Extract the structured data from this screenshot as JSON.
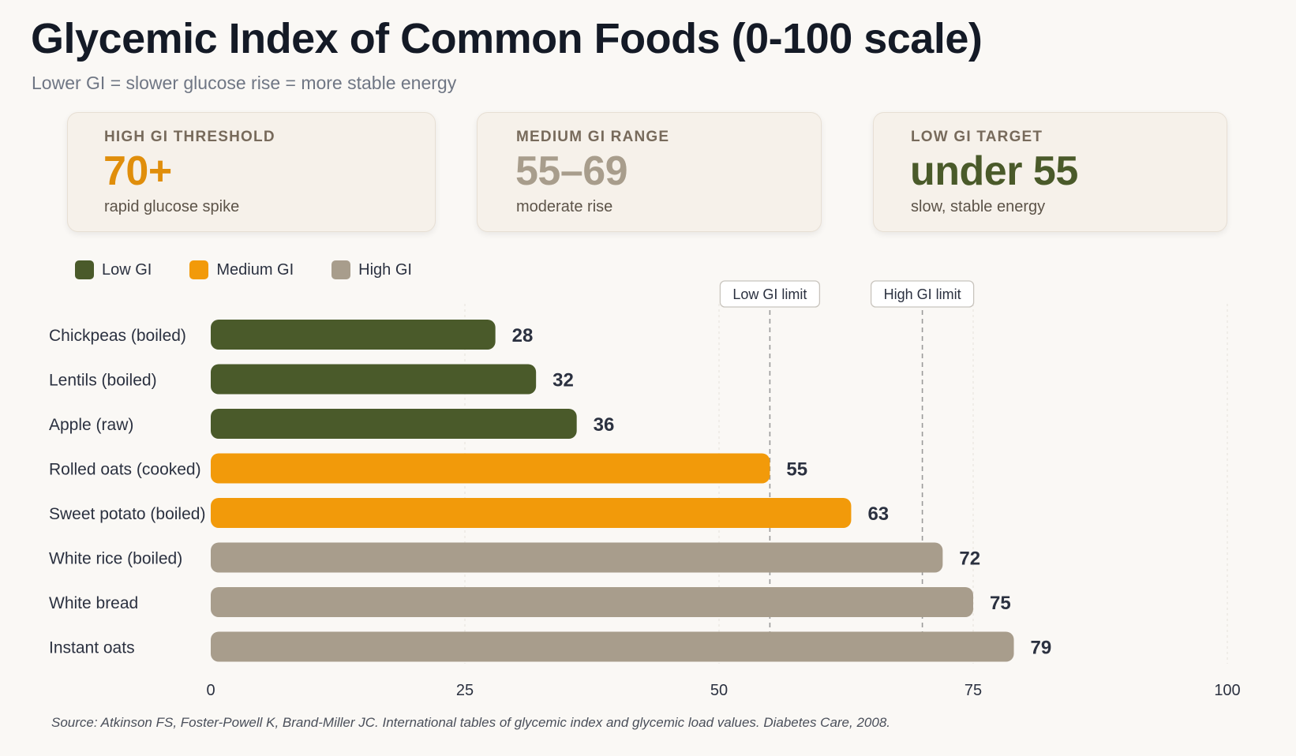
{
  "title": "Glycemic Index of Common Foods (0-100 scale)",
  "subtitle": "Lower GI = slower glucose rise = more stable energy",
  "cards": [
    {
      "label": "HIGH GI THRESHOLD",
      "value": "70+",
      "desc": "rapid glucose spike",
      "value_color": "#e08e0b"
    },
    {
      "label": "MEDIUM GI RANGE",
      "value": "55–69",
      "desc": "moderate rise",
      "value_color": "#a89d8c"
    },
    {
      "label": "LOW GI TARGET",
      "value": "under 55",
      "desc": "slow, stable energy",
      "value_color": "#4a5a2a"
    }
  ],
  "legend": [
    {
      "label": "Low GI",
      "color": "#4a5a2a"
    },
    {
      "label": "Medium GI",
      "color": "#f29a0a"
    },
    {
      "label": "High GI",
      "color": "#a89d8c"
    }
  ],
  "chart_data": {
    "type": "bar",
    "orientation": "horizontal",
    "categories": [
      "Chickpeas (boiled)",
      "Lentils (boiled)",
      "Apple (raw)",
      "Rolled oats (cooked)",
      "Sweet potato (boiled)",
      "White rice (boiled)",
      "White bread",
      "Instant oats"
    ],
    "values": [
      28,
      32,
      36,
      55,
      63,
      72,
      75,
      79
    ],
    "groups": [
      "Low GI",
      "Low GI",
      "Low GI",
      "Medium GI",
      "Medium GI",
      "High GI",
      "High GI",
      "High GI"
    ],
    "colors": {
      "Low GI": "#4a5a2a",
      "Medium GI": "#f29a0a",
      "High GI": "#a89d8c"
    },
    "xlim": [
      0,
      100
    ],
    "xticks": [
      0,
      25,
      50,
      75,
      100
    ],
    "reference_lines": [
      {
        "label": "Low GI limit",
        "x": 55
      },
      {
        "label": "High GI limit",
        "x": 70
      }
    ],
    "grid": true,
    "legend_position": "top-left"
  },
  "source": "Source: Atkinson FS, Foster-Powell K, Brand-Miller JC. International tables of glycemic index and glycemic load values. Diabetes Care, 2008."
}
